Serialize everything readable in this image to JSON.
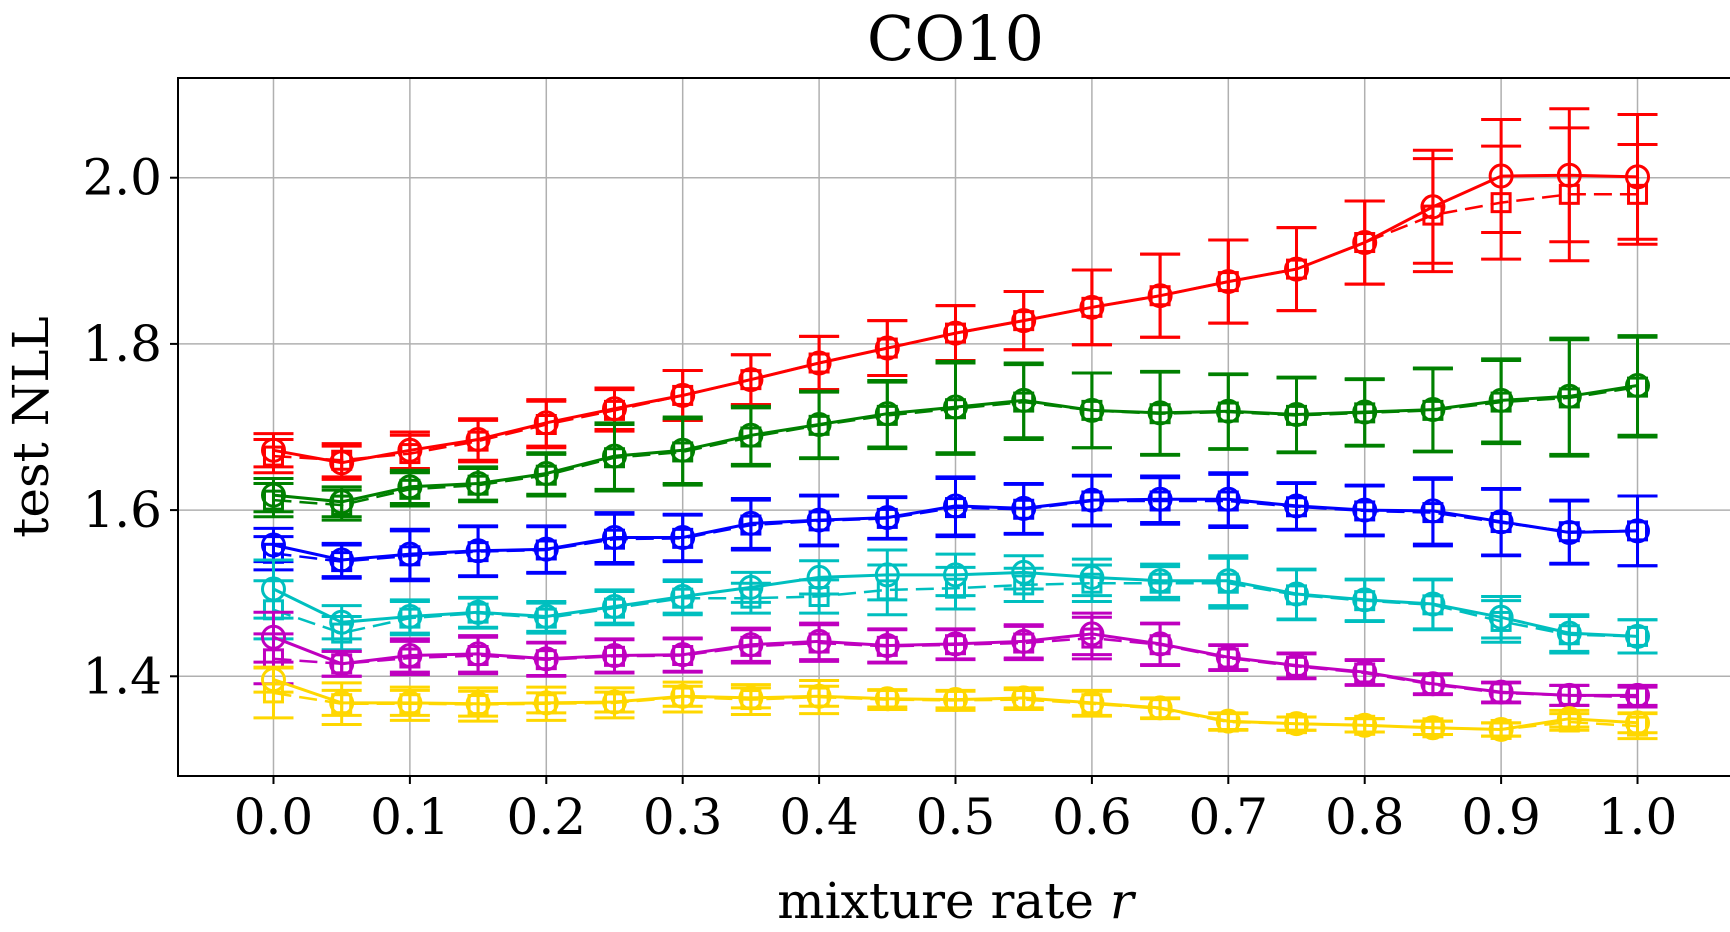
{
  "chart_data": {
    "type": "line",
    "title": "CO10",
    "xlabel": "mixture rate",
    "xlabel_var": "r",
    "ylabel": "test NLL",
    "xlim": [
      -0.07,
      1.07
    ],
    "ylim": [
      1.28,
      2.12
    ],
    "grid": true,
    "x_ticks": [
      "0.0",
      "0.1",
      "0.2",
      "0.3",
      "0.4",
      "0.5",
      "0.6",
      "0.7",
      "0.8",
      "0.9",
      "1.0"
    ],
    "y_ticks": [
      "1.4",
      "1.6",
      "1.8",
      "2.0"
    ],
    "x": [
      0.0,
      0.05,
      0.1,
      0.15,
      0.2,
      0.25,
      0.3,
      0.35,
      0.4,
      0.45,
      0.5,
      0.55,
      0.6,
      0.65,
      0.7,
      0.75,
      0.8,
      0.85,
      0.9,
      0.95,
      1.0
    ],
    "series": [
      {
        "color": "#ff0000",
        "circle": [
          1.672,
          1.657,
          1.672,
          1.685,
          1.705,
          1.722,
          1.738,
          1.757,
          1.777,
          1.795,
          1.813,
          1.828,
          1.844,
          1.858,
          1.875,
          1.89,
          1.922,
          1.965,
          2.002,
          2.003,
          2.001
        ],
        "circle_err": [
          0.02,
          0.02,
          0.022,
          0.025,
          0.028,
          0.025,
          0.03,
          0.03,
          0.032,
          0.033,
          0.033,
          0.035,
          0.045,
          0.05,
          0.05,
          0.05,
          0.05,
          0.068,
          0.068,
          0.08,
          0.075
        ],
        "square": [
          1.665,
          1.66,
          1.668,
          1.683,
          1.703,
          1.72,
          1.738,
          1.757,
          1.777,
          1.795,
          1.813,
          1.828,
          1.844,
          1.858,
          1.875,
          1.89,
          1.922,
          1.955,
          1.97,
          1.98,
          1.98
        ],
        "square_err": [
          0.02,
          0.02,
          0.022,
          0.025,
          0.028,
          0.025,
          0.03,
          0.03,
          0.032,
          0.033,
          0.033,
          0.035,
          0.045,
          0.05,
          0.05,
          0.05,
          0.05,
          0.068,
          0.068,
          0.08,
          0.06
        ]
      },
      {
        "color": "#008000",
        "circle": [
          1.618,
          1.61,
          1.628,
          1.632,
          1.644,
          1.665,
          1.672,
          1.69,
          1.703,
          1.716,
          1.724,
          1.732,
          1.72,
          1.717,
          1.719,
          1.715,
          1.718,
          1.721,
          1.732,
          1.737,
          1.75
        ],
        "circle_err": [
          0.02,
          0.018,
          0.02,
          0.02,
          0.025,
          0.04,
          0.04,
          0.035,
          0.04,
          0.04,
          0.055,
          0.045,
          0.045,
          0.05,
          0.045,
          0.045,
          0.04,
          0.05,
          0.05,
          0.07,
          0.06
        ],
        "square": [
          1.612,
          1.606,
          1.625,
          1.63,
          1.642,
          1.663,
          1.67,
          1.688,
          1.702,
          1.714,
          1.722,
          1.73,
          1.72,
          1.716,
          1.718,
          1.714,
          1.717,
          1.72,
          1.73,
          1.735,
          1.748
        ],
        "square_err": [
          0.02,
          0.018,
          0.02,
          0.02,
          0.025,
          0.04,
          0.04,
          0.035,
          0.04,
          0.04,
          0.055,
          0.045,
          0.045,
          0.05,
          0.045,
          0.045,
          0.04,
          0.05,
          0.05,
          0.07,
          0.06
        ]
      },
      {
        "color": "#0000ff",
        "circle": [
          1.558,
          1.54,
          1.547,
          1.551,
          1.553,
          1.567,
          1.567,
          1.584,
          1.588,
          1.591,
          1.605,
          1.602,
          1.612,
          1.613,
          1.613,
          1.605,
          1.6,
          1.599,
          1.586,
          1.573,
          1.575
        ],
        "circle_err": [
          0.02,
          0.02,
          0.03,
          0.03,
          0.028,
          0.03,
          0.028,
          0.03,
          0.03,
          0.025,
          0.035,
          0.03,
          0.03,
          0.028,
          0.032,
          0.028,
          0.03,
          0.04,
          0.04,
          0.038,
          0.042
        ],
        "square": [
          1.548,
          1.538,
          1.545,
          1.55,
          1.552,
          1.565,
          1.566,
          1.582,
          1.587,
          1.59,
          1.603,
          1.601,
          1.611,
          1.611,
          1.611,
          1.604,
          1.599,
          1.597,
          1.585,
          1.574,
          1.575
        ],
        "square_err": [
          0.02,
          0.02,
          0.03,
          0.03,
          0.028,
          0.03,
          0.028,
          0.03,
          0.03,
          0.025,
          0.035,
          0.03,
          0.03,
          0.028,
          0.032,
          0.028,
          0.03,
          0.04,
          0.04,
          0.038,
          0.042
        ]
      },
      {
        "color": "#00bfbf",
        "circle": [
          1.505,
          1.465,
          1.472,
          1.477,
          1.472,
          1.484,
          1.496,
          1.507,
          1.519,
          1.522,
          1.522,
          1.525,
          1.519,
          1.515,
          1.515,
          1.499,
          1.492,
          1.487,
          1.471,
          1.452,
          1.448
        ],
        "circle_err": [
          0.035,
          0.02,
          0.02,
          0.018,
          0.018,
          0.02,
          0.02,
          0.018,
          0.02,
          0.03,
          0.025,
          0.02,
          0.022,
          0.02,
          0.03,
          0.03,
          0.025,
          0.03,
          0.025,
          0.022,
          0.02
        ],
        "square": [
          1.48,
          1.452,
          1.47,
          1.476,
          1.47,
          1.482,
          1.494,
          1.494,
          1.496,
          1.504,
          1.506,
          1.51,
          1.512,
          1.512,
          1.512,
          1.498,
          1.491,
          1.486,
          1.466,
          1.45,
          1.448
        ],
        "square_err": [
          0.035,
          0.02,
          0.02,
          0.018,
          0.018,
          0.02,
          0.02,
          0.018,
          0.02,
          0.03,
          0.025,
          0.02,
          0.022,
          0.02,
          0.03,
          0.03,
          0.025,
          0.03,
          0.025,
          0.022,
          0.02
        ]
      },
      {
        "color": "#bf00bf",
        "circle": [
          1.447,
          1.415,
          1.425,
          1.427,
          1.421,
          1.425,
          1.426,
          1.438,
          1.442,
          1.437,
          1.439,
          1.442,
          1.451,
          1.439,
          1.423,
          1.413,
          1.405,
          1.391,
          1.381,
          1.377,
          1.377
        ],
        "circle_err": [
          0.03,
          0.015,
          0.02,
          0.022,
          0.02,
          0.02,
          0.02,
          0.02,
          0.022,
          0.02,
          0.018,
          0.02,
          0.025,
          0.025,
          0.015,
          0.015,
          0.015,
          0.012,
          0.012,
          0.012,
          0.012
        ],
        "square": [
          1.421,
          1.415,
          1.422,
          1.425,
          1.42,
          1.424,
          1.425,
          1.436,
          1.44,
          1.436,
          1.438,
          1.44,
          1.446,
          1.438,
          1.422,
          1.412,
          1.404,
          1.39,
          1.38,
          1.377,
          1.375
        ],
        "square_err": [
          0.03,
          0.015,
          0.02,
          0.022,
          0.02,
          0.02,
          0.02,
          0.02,
          0.022,
          0.02,
          0.018,
          0.02,
          0.025,
          0.025,
          0.015,
          0.015,
          0.015,
          0.012,
          0.012,
          0.012,
          0.012
        ]
      },
      {
        "color": "#ffd700",
        "circle": [
          1.396,
          1.368,
          1.368,
          1.367,
          1.368,
          1.369,
          1.376,
          1.374,
          1.376,
          1.373,
          1.372,
          1.374,
          1.368,
          1.362,
          1.346,
          1.343,
          1.341,
          1.338,
          1.336,
          1.349,
          1.344
        ],
        "circle_err": [
          0.015,
          0.015,
          0.015,
          0.015,
          0.012,
          0.012,
          0.012,
          0.012,
          0.012,
          0.01,
          0.01,
          0.012,
          0.015,
          0.012,
          0.01,
          0.008,
          0.008,
          0.008,
          0.008,
          0.01,
          0.012
        ],
        "square": [
          1.38,
          1.367,
          1.367,
          1.366,
          1.367,
          1.368,
          1.375,
          1.372,
          1.375,
          1.372,
          1.371,
          1.372,
          1.367,
          1.361,
          1.345,
          1.343,
          1.341,
          1.338,
          1.336,
          1.345,
          1.34
        ],
        "square_err": [
          0.03,
          0.025,
          0.02,
          0.02,
          0.02,
          0.018,
          0.018,
          0.018,
          0.02,
          0.012,
          0.012,
          0.012,
          0.015,
          0.012,
          0.01,
          0.008,
          0.008,
          0.008,
          0.008,
          0.01,
          0.015
        ]
      }
    ]
  }
}
